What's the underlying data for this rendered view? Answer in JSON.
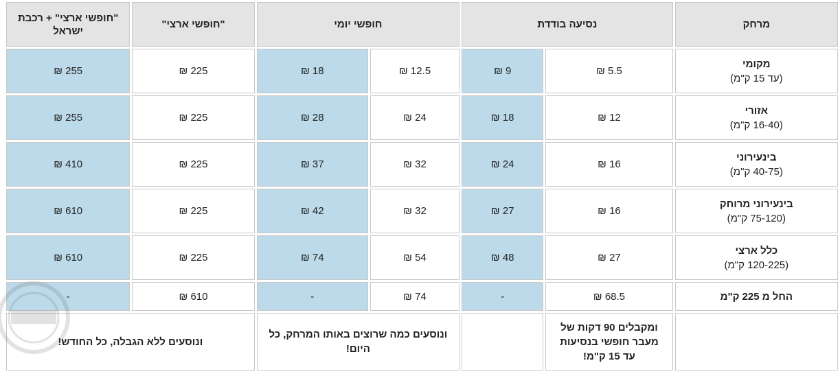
{
  "headers": {
    "distance": "מרחק",
    "single_ride": "נסיעה בודדת",
    "daily_free": "חופשי יומי",
    "national_free": "\"חופשי ארצי\"",
    "national_free_train": "\"חופשי ארצי\" + רכבת ישראל"
  },
  "rows": [
    {
      "name": "מקומי",
      "range": "(עד 15 ק\"מ)",
      "single_a": "5.5 ₪",
      "single_b": "9 ₪",
      "daily_a": "12.5 ₪",
      "daily_b": "18 ₪",
      "national": "225 ₪",
      "national_train": "255 ₪"
    },
    {
      "name": "אזורי",
      "range": "(16-40 ק\"מ)",
      "single_a": "12 ₪",
      "single_b": "18 ₪",
      "daily_a": "24 ₪",
      "daily_b": "28 ₪",
      "national": "225 ₪",
      "national_train": "255 ₪"
    },
    {
      "name": "בינעירוני",
      "range": "(40-75 ק\"מ)",
      "single_a": "16 ₪",
      "single_b": "24 ₪",
      "daily_a": "32 ₪",
      "daily_b": "37 ₪",
      "national": "225 ₪",
      "national_train": "410 ₪"
    },
    {
      "name": "בינעירוני מרוחק",
      "range": "(75-120 ק\"מ)",
      "single_a": "16 ₪",
      "single_b": "27 ₪",
      "daily_a": "32 ₪",
      "daily_b": "42 ₪",
      "national": "225 ₪",
      "national_train": "610 ₪"
    },
    {
      "name": "כלל ארצי",
      "range": "(120-225 ק\"מ)",
      "single_a": "27 ₪",
      "single_b": "48 ₪",
      "daily_a": "54 ₪",
      "daily_b": "74 ₪",
      "national": "225 ₪",
      "national_train": "610 ₪"
    }
  ],
  "last_row": {
    "name": "החל מ 225 ק\"מ",
    "single_a": "68.5 ₪",
    "single_b": "-",
    "daily_a": "74 ₪",
    "daily_b": "-",
    "national": "610 ₪",
    "national_train": "-"
  },
  "notes": {
    "single": "ומקבלים 90 דקות של מעבר חופשי בנסיעות עד 15 ק\"מ!",
    "daily": "ונוסעים כמה שרוצים באותו המרחק, כל היום!",
    "national": "ונוסעים ללא הגבלה, כל החודש!"
  },
  "colors": {
    "header_bg": "#e4e4e4",
    "highlight_blue": "#bcdaea",
    "border": "#c8c8c8"
  },
  "icons": [
    "watermark-stamp-icon"
  ]
}
